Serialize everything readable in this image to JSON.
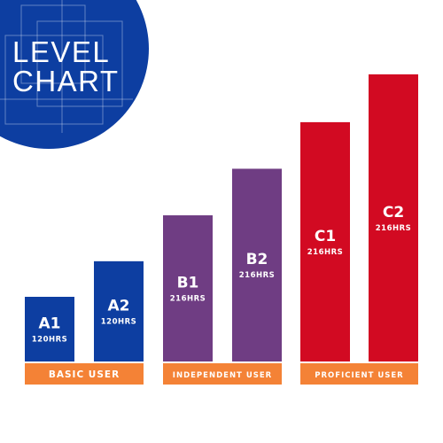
{
  "title_lines": [
    "LEVEL",
    "CHART"
  ],
  "colors": {
    "blue": "#0d3ea1",
    "purple": "#6f3d83",
    "red": "#d20a22",
    "orange": "#f48236",
    "badge": "#0d3ea1"
  },
  "chart_data": {
    "type": "bar",
    "categories": [
      "A1",
      "A2",
      "B1",
      "B2",
      "C1",
      "C2"
    ],
    "hours_labels": [
      "120HRS",
      "120HRS",
      "216HRS",
      "216HRS",
      "216HRS",
      "216HRS"
    ],
    "bar_colors": [
      "#0d3ea1",
      "#0d3ea1",
      "#6f3d83",
      "#6f3d83",
      "#d20a22",
      "#d20a22"
    ],
    "heights": [
      1.0,
      1.55,
      2.26,
      2.98,
      3.7,
      4.44
    ],
    "groups": [
      {
        "label": "BASIC USER",
        "bars": [
          "A1",
          "A2"
        ],
        "color": "#f48236"
      },
      {
        "label": "INDEPENDENT USER",
        "bars": [
          "B1",
          "B2"
        ],
        "color": "#f48236"
      },
      {
        "label": "PROFICIENT USER",
        "bars": [
          "C1",
          "C2"
        ],
        "color": "#f48236"
      }
    ]
  }
}
